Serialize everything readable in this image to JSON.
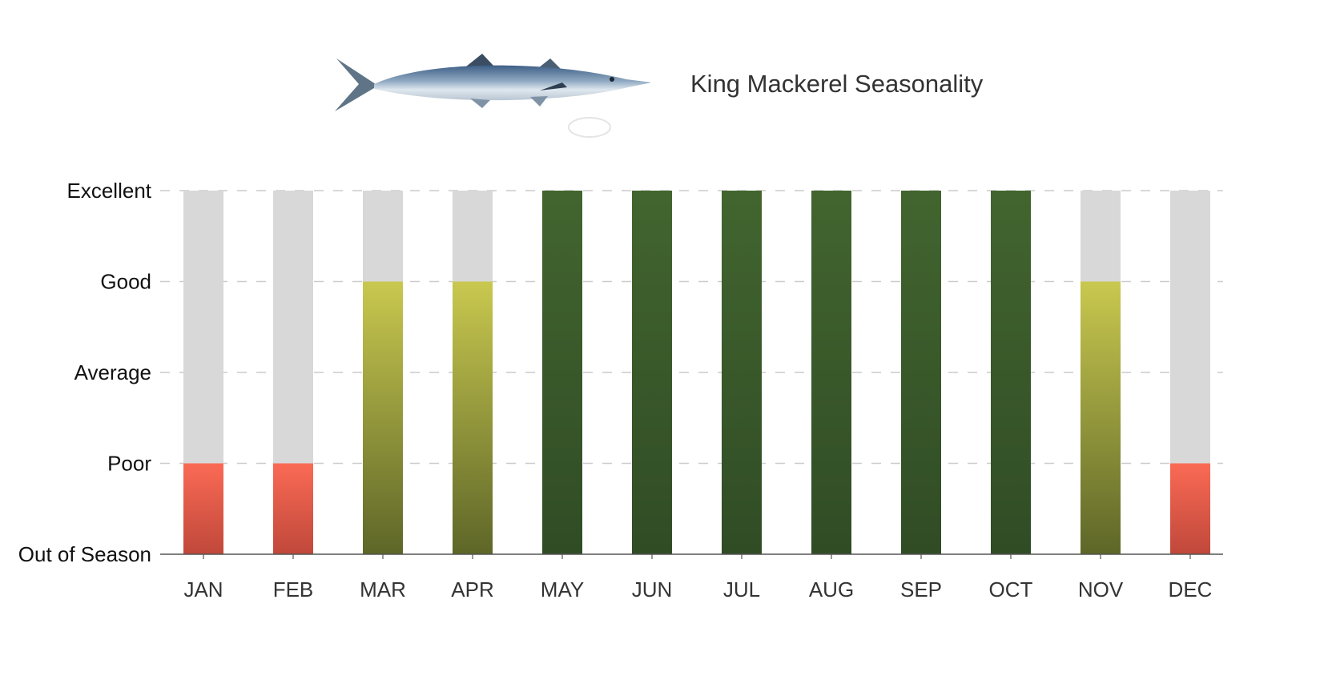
{
  "header": {
    "fish_image": "king-mackerel-illustration",
    "title": "King Mackerel Seasonality"
  },
  "chart_data": {
    "type": "bar",
    "title": "King Mackerel Seasonality",
    "xlabel": "",
    "ylabel": "",
    "categories": [
      "JAN",
      "FEB",
      "MAR",
      "APR",
      "MAY",
      "JUN",
      "JUL",
      "AUG",
      "SEP",
      "OCT",
      "NOV",
      "DEC"
    ],
    "levels": [
      "Out of Season",
      "Poor",
      "Average",
      "Good",
      "Excellent"
    ],
    "values": [
      1,
      1,
      3,
      3,
      4,
      4,
      4,
      4,
      4,
      4,
      3,
      1
    ],
    "ylim": [
      0,
      4
    ],
    "grid": true,
    "legend": "none",
    "colors": {
      "background_bar": "#d8d8d8",
      "poor_top": "#fa6a55",
      "poor_bottom": "#c0483a",
      "good_top": "#c9c84f",
      "good_bottom": "#5e6628",
      "excellent_top": "#42652f",
      "excellent_bottom": "#304c25",
      "axis": "#555555",
      "grid": "#cccccc"
    }
  }
}
